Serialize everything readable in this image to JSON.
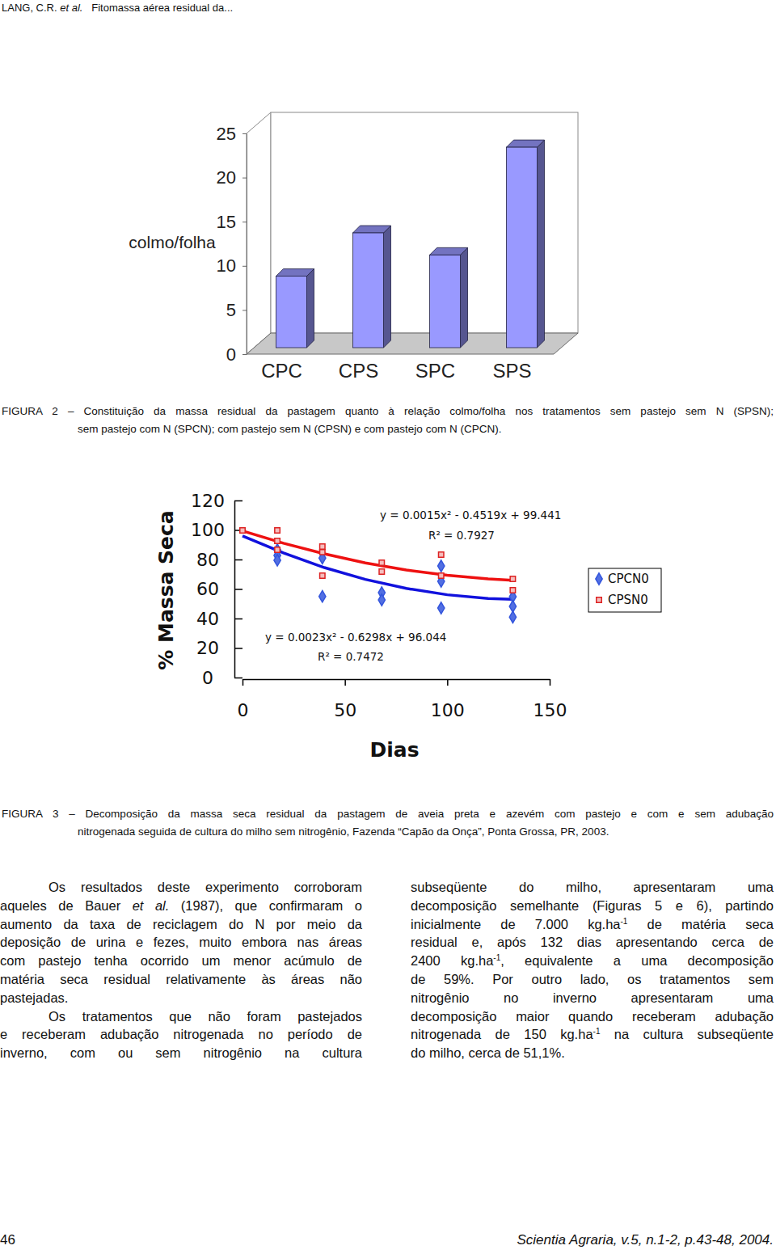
{
  "header": {
    "authors": "LANG, C.R.",
    "etal": "et al.",
    "title": "Fitomassa aérea residual da..."
  },
  "chart_data": [
    {
      "type": "bar",
      "ylabel": "colmo/folha",
      "categories": [
        "CPC",
        "CPS",
        "SPC",
        "SPS"
      ],
      "values": [
        8.1,
        13.0,
        10.5,
        22.7
      ],
      "color": "#9999ff",
      "ylim": [
        0,
        25
      ],
      "yticks": [
        0,
        5,
        10,
        15,
        20,
        25
      ]
    },
    {
      "type": "scatter",
      "xlabel": "Dias",
      "ylabel": "% Massa Seca",
      "xlim": [
        0,
        150
      ],
      "ylim": [
        0,
        120
      ],
      "xticks": [
        0,
        50,
        100,
        150
      ],
      "yticks": [
        0,
        20,
        40,
        60,
        80,
        100,
        120
      ],
      "legend": "right",
      "series": [
        {
          "name": "CPCN0",
          "color": "#3355dd",
          "marker": "diamond",
          "x": [
            17,
            17,
            17,
            39,
            39,
            68,
            68,
            97,
            97,
            97,
            132,
            132,
            132
          ],
          "values": [
            86.6,
            82.7,
            79.5,
            81,
            55,
            57.5,
            52.6,
            75.6,
            65.2,
            47.1,
            54.8,
            48.2,
            41
          ],
          "trend": {
            "color": "#1111dd",
            "x": [
              0,
              20,
              40,
              60,
              80,
              100,
              120,
              132
            ],
            "values": [
              96.0,
              84.4,
              74.5,
              66.5,
              60.4,
              56.1,
              53.6,
              53.0
            ],
            "equation": "y = 0.0023x² - 0.6298x + 96.044",
            "r2": "R² = 0.7472"
          }
        },
        {
          "name": "CPSN0",
          "color": "#dd2222",
          "marker": "square",
          "x": [
            0,
            17,
            17,
            17,
            39,
            39,
            39,
            68,
            68,
            97,
            97,
            132,
            132
          ],
          "values": [
            99.7,
            99.7,
            92.6,
            86.6,
            88.8,
            85,
            69,
            77.8,
            71.8,
            83.3,
            69,
            66.8,
            59.2
          ],
          "trend": {
            "color": "#ee1111",
            "x": [
              0,
              20,
              40,
              60,
              80,
              100,
              120,
              132
            ],
            "values": [
              99.4,
              91.0,
              83.8,
              77.7,
              72.9,
              69.3,
              66.8,
              65.9
            ],
            "equation": "y = 0.0015x² - 0.4519x + 99.441",
            "r2": "R² = 0.7927"
          }
        }
      ]
    }
  ],
  "captions": [
    {
      "lines": [
        "FIGURA 2 – Constituição da massa residual da pastagem quanto à relação colmo/folha nos tratamentos sem pastejo sem N (SPSN);",
        "sem pastejo com N (SPCN); com pastejo sem N (CPSN) e com pastejo com N (CPCN)."
      ]
    },
    {
      "lines": [
        "FIGURA 3 – Decomposição da massa seca residual da pastagem de aveia preta e azevém com pastejo e com e sem adubação",
        "nitrogenada seguida de cultura do milho sem nitrogênio, Fazenda “Capão da Onça”, Ponta Grossa, PR, 2003."
      ]
    }
  ],
  "body": {
    "columns": [
      {
        "paragraphs": [
          [
            [
              "Os resultados deste experimento corroboram"
            ],
            [
              "aqueles de Bauer ",
              {
                "text": "et al.",
                "style": "italic"
              },
              " (1987), que confirmaram o"
            ],
            [
              "aumento da taxa de reciclagem do N por meio da"
            ],
            [
              "deposição de urina e fezes, muito embora nas áreas"
            ],
            [
              "com pastejo tenha ocorrido um menor acúmulo de"
            ],
            [
              "matéria seca residual relativamente às áreas não"
            ],
            [
              "pastejadas."
            ]
          ],
          [
            [
              "Os tratamentos que não foram pastejados"
            ],
            [
              "e receberam adubação nitrogenada no período de"
            ],
            [
              "inverno, com ou sem nitrogênio na cultura"
            ]
          ]
        ]
      },
      {
        "paragraphs": [
          [
            [
              "subseqüente do milho, apresentaram uma"
            ],
            [
              "decomposição semelhante (Figuras 5 e 6), partindo"
            ],
            [
              "inicialmente de 7.000 kg.ha",
              {
                "text": "-1",
                "style": "sup"
              },
              " de matéria seca"
            ],
            [
              "residual e, após 132 dias apresentando cerca de"
            ],
            [
              "2400 kg.ha",
              {
                "text": "-1",
                "style": "sup"
              },
              ", equivalente a uma decomposição"
            ],
            [
              "de 59%. Por outro lado, os tratamentos sem"
            ],
            [
              "nitrogênio no inverno apresentaram uma"
            ],
            [
              "decomposição maior quando receberam adubação"
            ],
            [
              "nitrogenada de 150 kg.ha",
              {
                "text": "-1",
                "style": "sup"
              },
              " na cultura subseqüente"
            ],
            [
              "do milho, cerca de 51,1%."
            ]
          ]
        ]
      }
    ]
  },
  "footer": {
    "page": "46",
    "journal": "Scientia Agraria, v.5, n.1-2, p.43-48, 2004."
  }
}
